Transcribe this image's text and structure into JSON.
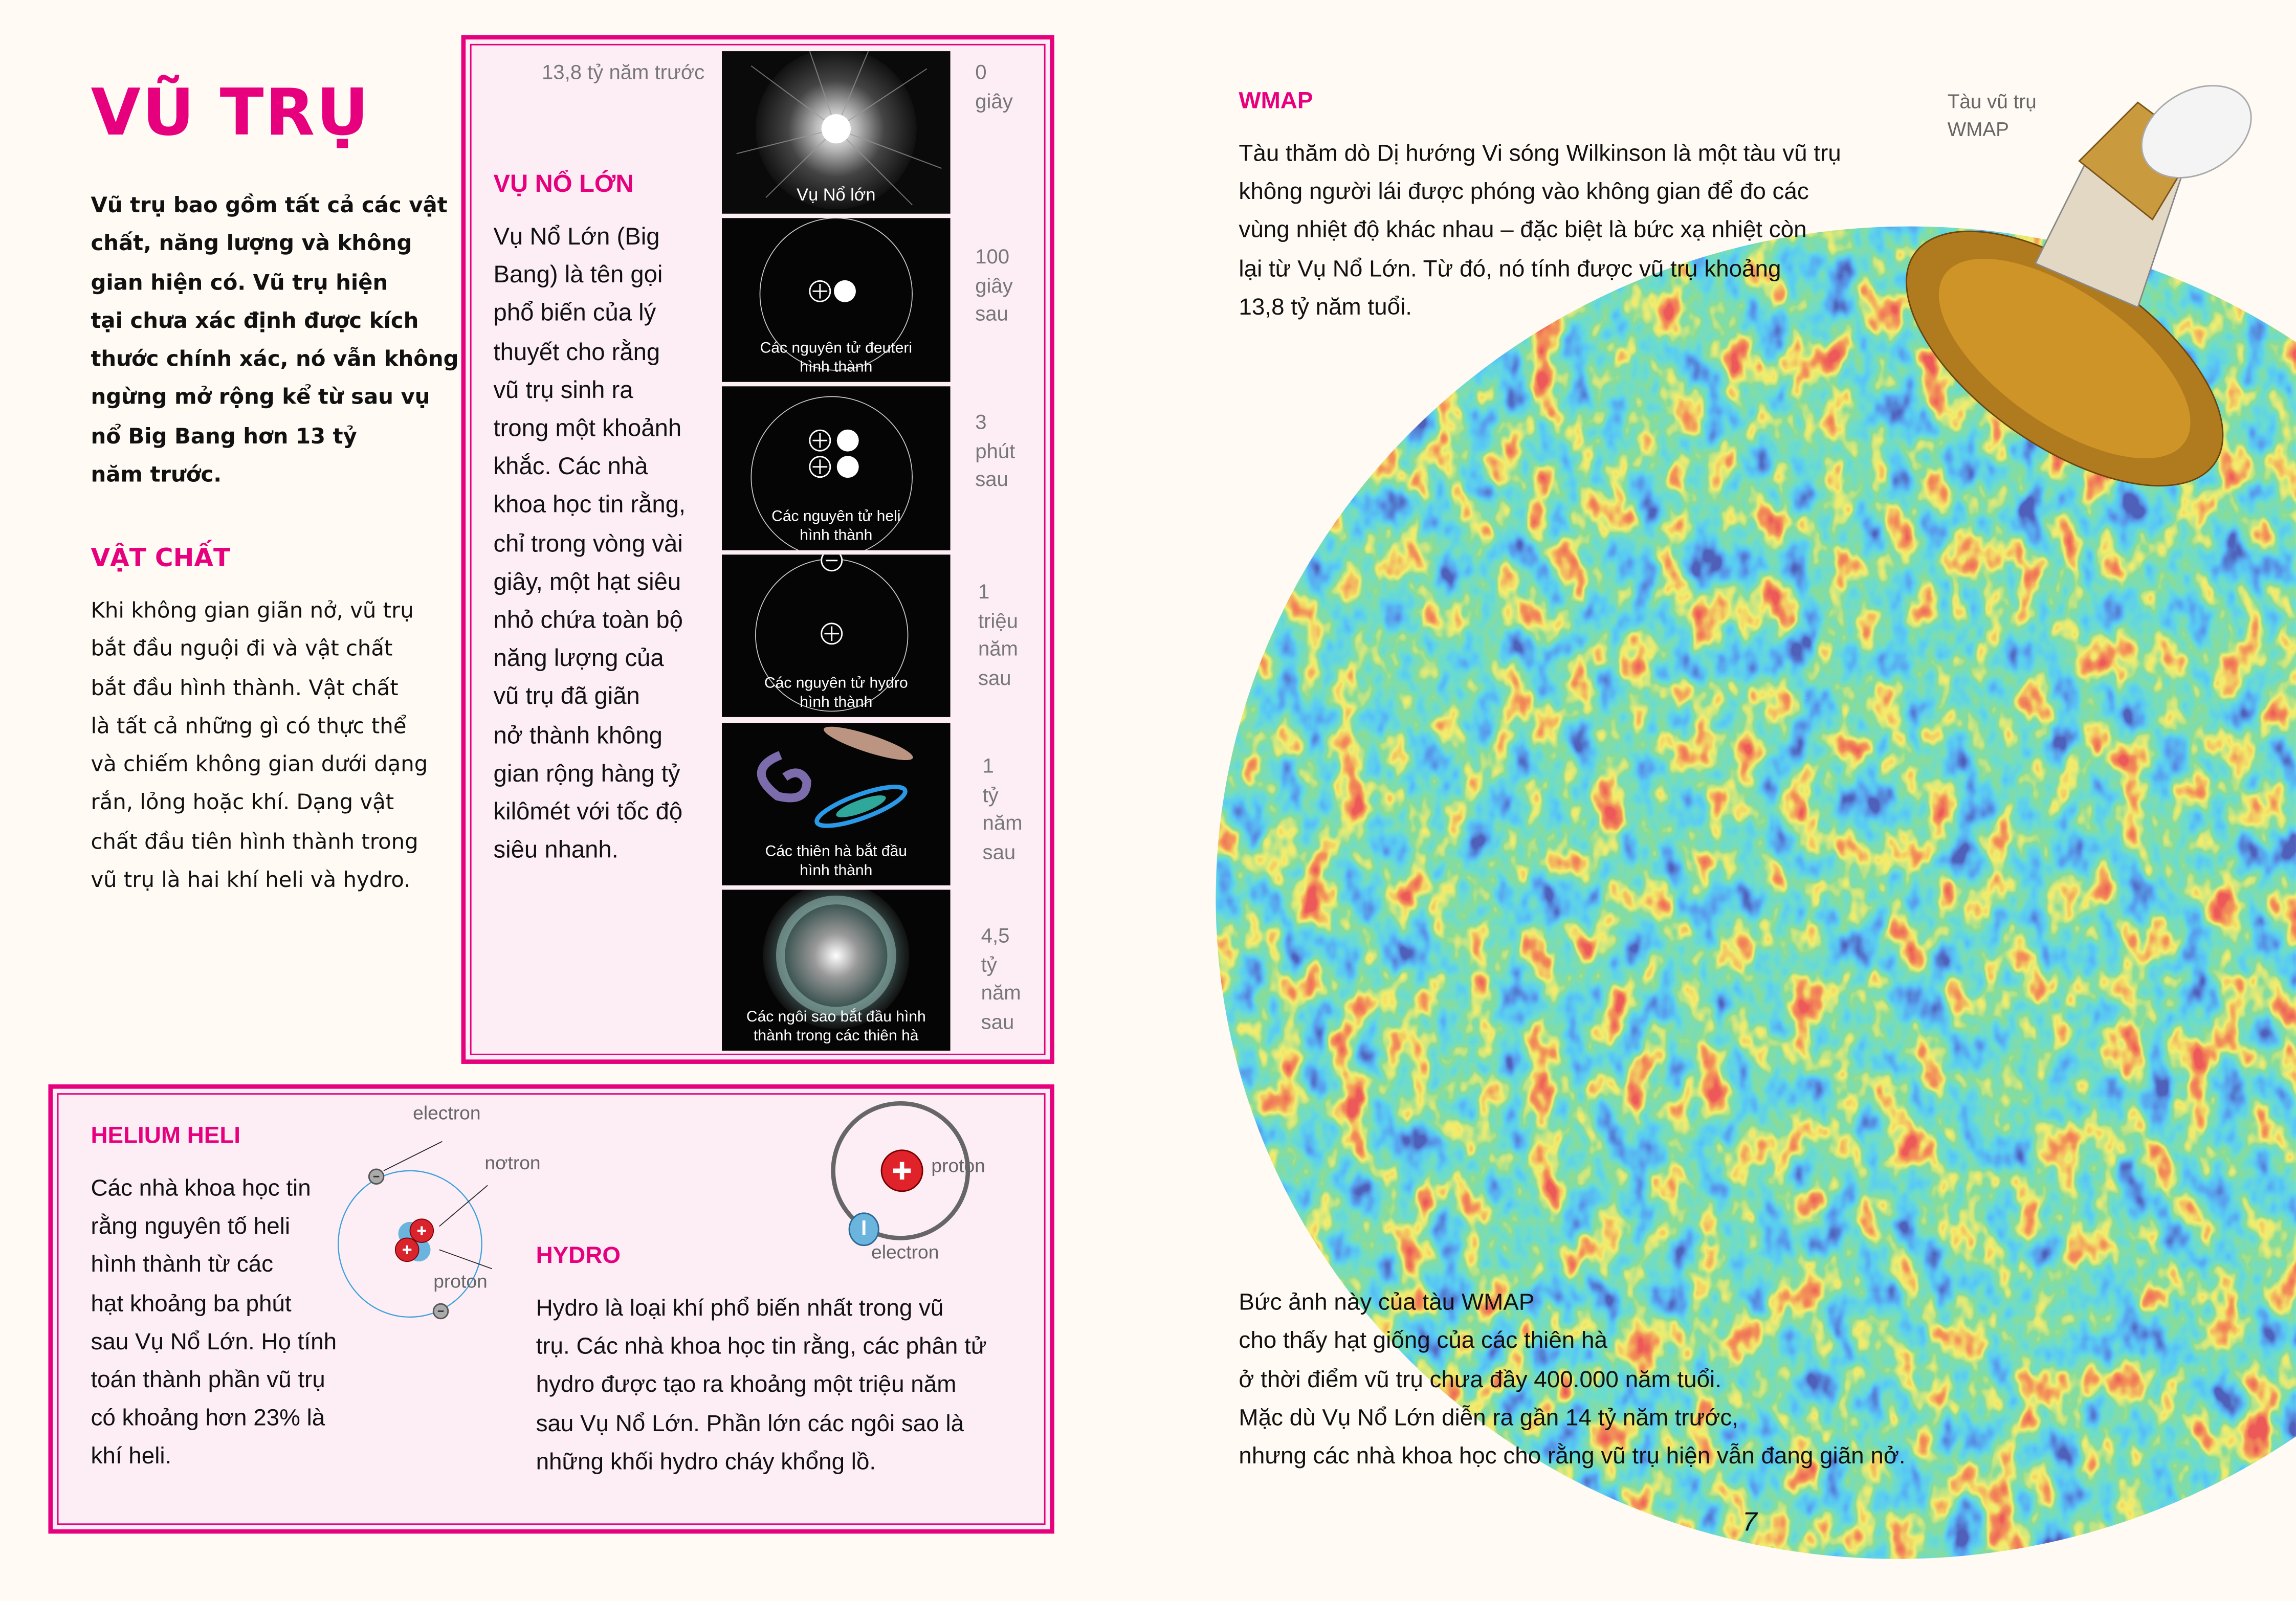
{
  "left": {
    "title": "VŨ TRỤ",
    "intro_lines": [
      "Vũ trụ bao gồm tất cả các vật",
      "chất, năng lượng và không",
      "gian hiện có. Vũ trụ hiện",
      "tại chưa xác định được kích",
      "thước chính xác, nó vẫn không",
      "ngừng mở rộng kể từ sau vụ",
      "nổ Big Bang hơn 13 tỷ",
      "năm trước."
    ],
    "matter_heading": "VẬT CHẤT",
    "matter_lines": [
      "Khi không gian giãn nở, vũ trụ",
      "bắt đầu nguội đi và vật chất",
      "bắt đầu hình thành. Vật chất",
      "là tất cả những gì có thực thể",
      "và chiếm không gian dưới dạng",
      "rắn, lỏng hoặc khí. Dạng vật",
      "chất đầu tiên hình thành trong",
      "vũ trụ là hai khí heli và hydro."
    ]
  },
  "big_bang": {
    "time_ago": "13,8 tỷ năm trước",
    "heading": "VỤ NỔ LỚN",
    "text_lines": [
      "Vụ Nổ Lớn (Big",
      "Bang) là tên gọi",
      "phổ biến của lý",
      "thuyết cho rằng",
      "vũ trụ sinh ra",
      "trong một khoảnh",
      "khắc. Các nhà",
      "khoa học tin rằng,",
      "chỉ trong vòng vài",
      "giây, một hạt siêu",
      "nhỏ chứa toàn bộ",
      "năng lượng của",
      "vũ trụ đã giãn",
      "nở thành không",
      "gian rộng hàng tỷ",
      "kilômét với tốc độ",
      "siêu nhanh."
    ],
    "stages": [
      {
        "caption_lines": [
          "Vụ Nổ lớn"
        ],
        "time_lines": [
          "0",
          "giây"
        ]
      },
      {
        "caption_lines": [
          "Các nguyên tử đeuteri",
          "hình thành"
        ],
        "time_lines": [
          "100",
          "giây",
          "sau"
        ]
      },
      {
        "caption_lines": [
          "Các nguyên tử heli",
          "hình thành"
        ],
        "time_lines": [
          "3",
          "phút",
          "sau"
        ]
      },
      {
        "caption_lines": [
          "Các nguyên tử hydro",
          "hình thành"
        ],
        "time_lines": [
          "1",
          "triệu",
          "năm",
          "sau"
        ]
      },
      {
        "caption_lines": [
          "Các thiên hà bắt đầu",
          "hình thành"
        ],
        "time_lines": [
          "1",
          "tỷ",
          "năm",
          "sau"
        ]
      },
      {
        "caption_lines": [
          "Các ngôi sao bắt đầu hình",
          "thành trong các thiên hà"
        ],
        "time_lines": [
          "4,5",
          "tỷ",
          "năm",
          "sau"
        ]
      }
    ]
  },
  "helium": {
    "heading": "HELIUM HELI",
    "text_lines": [
      "Các nhà khoa học tin",
      "rằng nguyên tố heli",
      "hình thành từ các",
      "hạt khoảng ba phút",
      "sau Vụ Nổ Lớn. Họ tính",
      "toán thành phần vũ trụ",
      "có khoảng hơn 23% là",
      "khí heli."
    ],
    "labels": {
      "electron": "electron",
      "neutron": "nơtron",
      "proton": "proton"
    }
  },
  "hydro": {
    "heading": "HYDRO",
    "text_lines": [
      "Hydro là loại khí phổ biến nhất trong vũ",
      "trụ. Các nhà khoa học tin rằng, các phân tử",
      "hydro được tạo ra khoảng một triệu năm",
      "sau Vụ Nổ Lớn. Phần lớn các ngôi sao là",
      "những khối hydro cháy khổng lồ."
    ],
    "labels": {
      "proton": "proton",
      "electron": "electron"
    }
  },
  "wmap": {
    "heading": "WMAP",
    "text_lines": [
      "Tàu thăm dò Dị hướng Vi sóng Wilkinson là một tàu vũ trụ",
      "không người lái được phóng vào không gian để đo các",
      "vùng nhiệt độ khác nhau – đặc biệt là bức xạ nhiệt còn",
      "lại từ Vụ Nổ Lớn. Từ đó, nó tính được vũ trụ khoảng",
      "13,8 tỷ năm tuổi."
    ],
    "satellite_label_lines": [
      "Tàu vũ trụ",
      "WMAP"
    ],
    "caption_lines": [
      "Bức ảnh này của tàu WMAP",
      "cho thấy hạt giống của các thiên hà",
      "ở thời điểm vũ trụ chưa đầy 400.000 năm tuổi.",
      "Mặc dù Vụ Nổ Lớn diễn ra gần 14 tỷ năm trước,",
      "nhưng các nhà khoa học cho rằng vũ trụ hiện vẫn đang giãn nở."
    ]
  },
  "page_number": "7",
  "colors": {
    "accent": "#e6007e",
    "box_fill": "#fdeef5",
    "page_bg": "#fffaf4"
  }
}
